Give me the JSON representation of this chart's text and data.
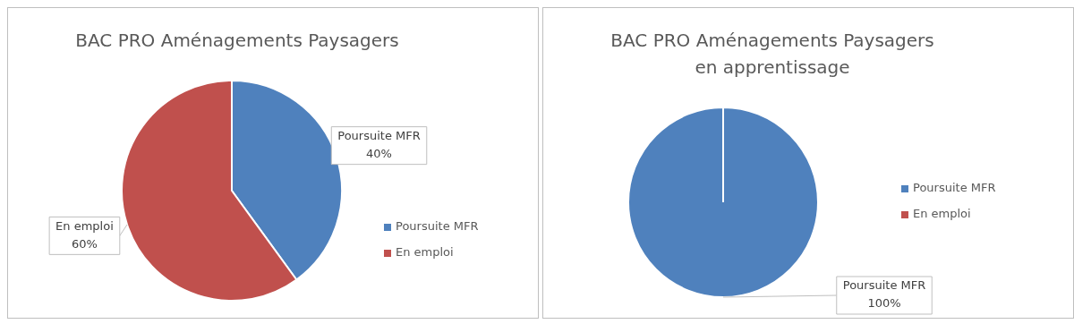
{
  "chart_data": [
    {
      "type": "pie",
      "title": "BAC PRO Aménagements Paysagers",
      "categories": [
        "Poursuite MFR",
        "En emploi"
      ],
      "values": [
        40,
        60
      ],
      "colors": [
        "#4f81bd",
        "#c0504d"
      ],
      "value_labels": [
        "40%",
        "60%"
      ],
      "legend": "right"
    },
    {
      "type": "pie",
      "title": "BAC PRO Aménagements Paysagers\nen apprentissage",
      "categories": [
        "Poursuite MFR",
        "En emploi"
      ],
      "values": [
        100,
        0
      ],
      "colors": [
        "#4f81bd",
        "#c0504d"
      ],
      "value_labels": [
        "100%",
        null
      ],
      "legend": "right"
    }
  ]
}
